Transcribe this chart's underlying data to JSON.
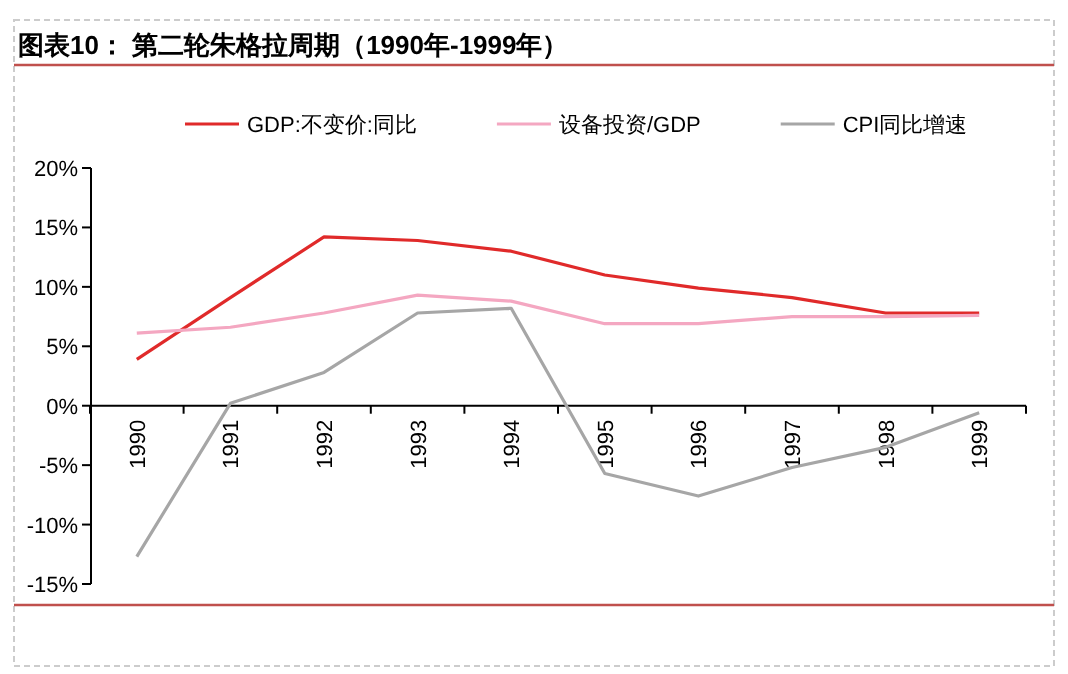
{
  "chart_data": {
    "type": "line",
    "title": "图表10：  第二轮朱格拉周期（1990年-1999年）",
    "categories": [
      "1990",
      "1991",
      "1992",
      "1993",
      "1994",
      "1995",
      "1996",
      "1997",
      "1998",
      "1999"
    ],
    "series": [
      {
        "name": "GDP:不变价:同比",
        "color": "#e02a2a",
        "values": [
          3.9,
          9.1,
          14.2,
          13.9,
          13.0,
          11.0,
          9.9,
          9.1,
          7.8,
          7.8
        ]
      },
      {
        "name": "设备投资/GDP",
        "color": "#f4a7c1",
        "values": [
          6.1,
          6.6,
          7.8,
          9.3,
          8.8,
          6.9,
          6.9,
          7.5,
          7.5,
          7.6
        ]
      },
      {
        "name": "CPI同比增速",
        "color": "#a6a6a6",
        "values": [
          -12.7,
          0.2,
          2.8,
          7.8,
          8.2,
          -5.7,
          -7.6,
          -5.2,
          -3.5,
          -0.6
        ]
      }
    ],
    "ylim": [
      -15,
      20
    ],
    "yticks": [
      {
        "value": -15,
        "label": "-15%"
      },
      {
        "value": -10,
        "label": "-10%"
      },
      {
        "value": -5,
        "label": "-5%"
      },
      {
        "value": 0,
        "label": "0%"
      },
      {
        "value": 5,
        "label": "5%"
      },
      {
        "value": 10,
        "label": "10%"
      },
      {
        "value": 15,
        "label": "15%"
      },
      {
        "value": 20,
        "label": "20%"
      }
    ],
    "legend": "top",
    "grid": false
  }
}
